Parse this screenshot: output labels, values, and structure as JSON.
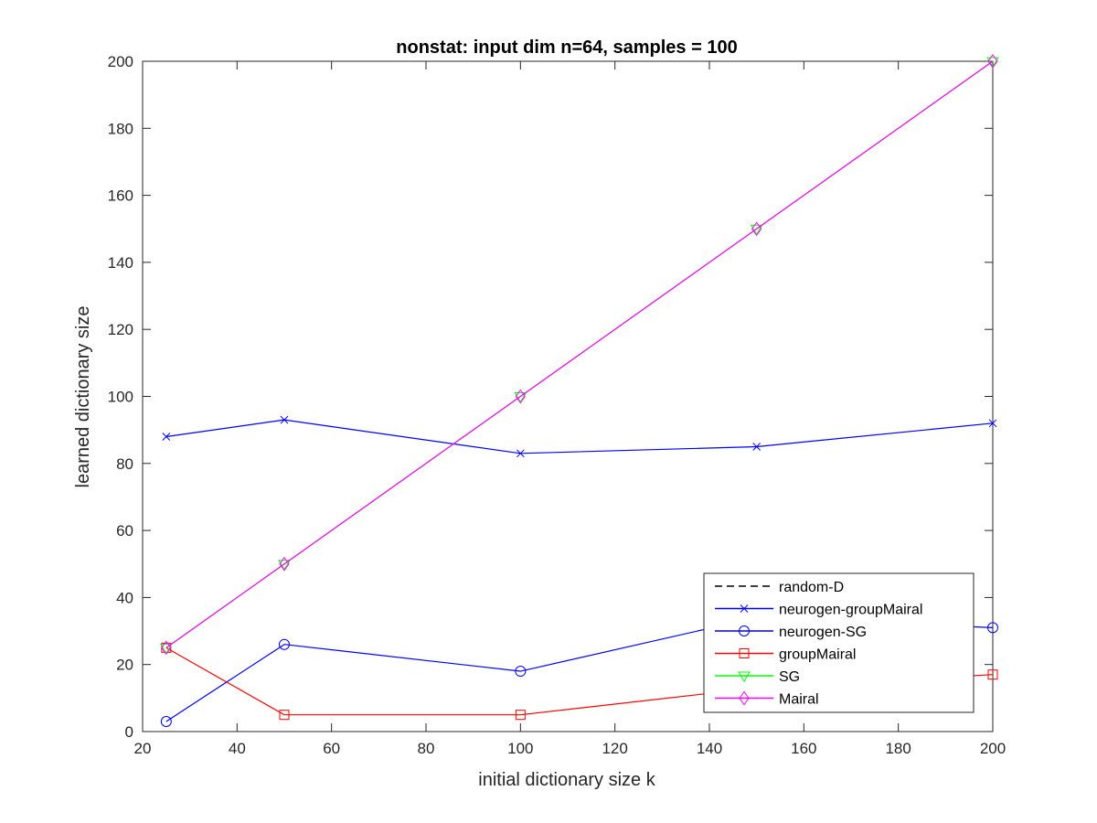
{
  "chart_data": {
    "type": "line",
    "title": "nonstat: input dim n=64, samples = 100",
    "xlabel": "initial dictionary size k",
    "ylabel": "learned dictionary size",
    "xlim": [
      20,
      200
    ],
    "ylim": [
      0,
      200
    ],
    "xticks": [
      20,
      40,
      60,
      80,
      100,
      120,
      140,
      160,
      180,
      200
    ],
    "yticks": [
      0,
      20,
      40,
      60,
      80,
      100,
      120,
      140,
      160,
      180,
      200
    ],
    "x": [
      25,
      50,
      100,
      150,
      200
    ],
    "legend_position": "bottom-right",
    "series": [
      {
        "name": "random-D",
        "values": [
          null,
          null,
          null,
          null,
          null
        ],
        "color": "#000000",
        "dash": "dashed",
        "marker": "none"
      },
      {
        "name": "neurogen-groupMairal",
        "values": [
          88,
          93,
          83,
          85,
          92
        ],
        "color": "#0000ff",
        "dash": "solid",
        "marker": "x"
      },
      {
        "name": "neurogen-SG",
        "values": [
          3,
          26,
          18,
          34,
          31
        ],
        "color": "#0000ff",
        "dash": "solid",
        "marker": "circle"
      },
      {
        "name": "groupMairal",
        "values": [
          25,
          5,
          5,
          13,
          17
        ],
        "color": "#ff0000",
        "dash": "solid",
        "marker": "square"
      },
      {
        "name": "SG",
        "values": [
          25,
          50,
          100,
          150,
          200
        ],
        "color": "#00ff00",
        "dash": "solid",
        "marker": "triangle-down"
      },
      {
        "name": "Mairal",
        "values": [
          25,
          50,
          100,
          150,
          200
        ],
        "color": "#ff00ff",
        "dash": "solid",
        "marker": "diamond"
      }
    ]
  }
}
